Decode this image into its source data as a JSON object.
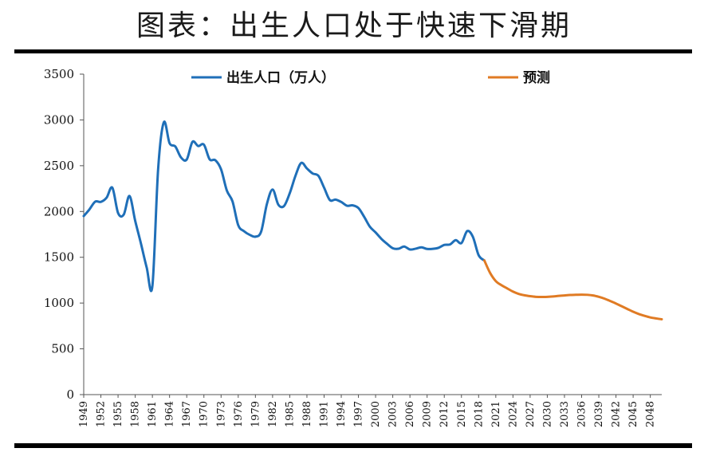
{
  "title": "图表：出生人口处于快速下滑期",
  "colors": {
    "actual": "#1f6fb8",
    "forecast": "#e07b24"
  },
  "chart_data": {
    "type": "line",
    "legend": {
      "position": "top",
      "entries": [
        "出生人口（万人）",
        "预测"
      ]
    },
    "ylim": [
      0,
      3500
    ],
    "y_ticks": [
      0,
      500,
      1000,
      1500,
      2000,
      2500,
      3000,
      3500
    ],
    "xlim": [
      1949,
      2050
    ],
    "x_tick_labels": [
      "1949",
      "1952",
      "1955",
      "1958",
      "1961",
      "1964",
      "1967",
      "1970",
      "1973",
      "1976",
      "1979",
      "1982",
      "1985",
      "1988",
      "1991",
      "1994",
      "1997",
      "2000",
      "2003",
      "2006",
      "2009",
      "2012",
      "2015",
      "2018",
      "2021",
      "2024",
      "2027",
      "2030",
      "2033",
      "2036",
      "2039",
      "2042",
      "2045",
      "2048"
    ],
    "grid": false,
    "series": [
      {
        "name": "出生人口（万人）",
        "x": [
          1949,
          1950,
          1951,
          1952,
          1953,
          1954,
          1955,
          1956,
          1957,
          1958,
          1959,
          1960,
          1961,
          1962,
          1963,
          1964,
          1965,
          1966,
          1967,
          1968,
          1969,
          1970,
          1971,
          1972,
          1973,
          1974,
          1975,
          1976,
          1977,
          1978,
          1979,
          1980,
          1981,
          1982,
          1983,
          1984,
          1985,
          1986,
          1987,
          1988,
          1989,
          1990,
          1991,
          1992,
          1993,
          1994,
          1995,
          1996,
          1997,
          1998,
          1999,
          2000,
          2001,
          2002,
          2003,
          2004,
          2005,
          2006,
          2007,
          2008,
          2009,
          2010,
          2011,
          2012,
          2013,
          2014,
          2015,
          2016,
          2017,
          2018,
          2019
        ],
        "values": [
          1950,
          2023,
          2107,
          2105,
          2151,
          2260,
          1984,
          1967,
          2169,
          1897,
          1650,
          1389,
          1187,
          2460,
          2975,
          2746,
          2710,
          2590,
          2568,
          2760,
          2715,
          2730,
          2570,
          2560,
          2460,
          2230,
          2110,
          1850,
          1785,
          1745,
          1725,
          1780,
          2080,
          2240,
          2075,
          2060,
          2200,
          2390,
          2530,
          2470,
          2415,
          2390,
          2260,
          2125,
          2130,
          2104,
          2063,
          2067,
          2038,
          1942,
          1834,
          1771,
          1702,
          1647,
          1599,
          1593,
          1617,
          1585,
          1594,
          1608,
          1591,
          1592,
          1604,
          1635,
          1640,
          1687,
          1655,
          1786,
          1723,
          1523,
          1465
        ]
      },
      {
        "name": "预测",
        "x": [
          2019,
          2020,
          2021,
          2022,
          2023,
          2024,
          2025,
          2026,
          2027,
          2028,
          2029,
          2030,
          2031,
          2032,
          2033,
          2034,
          2035,
          2036,
          2037,
          2038,
          2039,
          2040,
          2041,
          2042,
          2043,
          2044,
          2045,
          2046,
          2047,
          2048,
          2049,
          2050
        ],
        "values": [
          1465,
          1330,
          1240,
          1195,
          1160,
          1125,
          1100,
          1085,
          1075,
          1068,
          1066,
          1068,
          1072,
          1078,
          1083,
          1088,
          1090,
          1092,
          1090,
          1083,
          1068,
          1048,
          1022,
          995,
          965,
          935,
          905,
          880,
          860,
          843,
          832,
          823
        ]
      }
    ]
  }
}
